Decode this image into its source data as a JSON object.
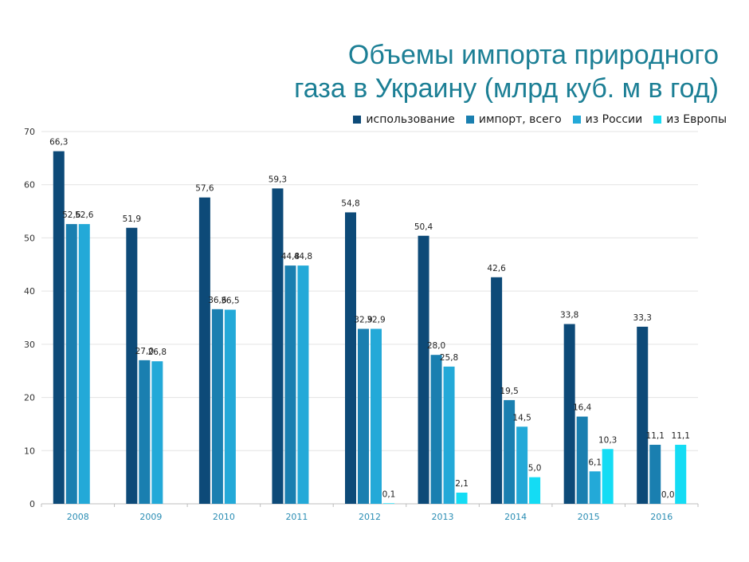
{
  "chart_data": {
    "type": "bar",
    "title_lines": [
      "Объемы импорта природного",
      "газа в Украину (млрд куб. м в год)"
    ],
    "categories": [
      "2008",
      "2009",
      "2010",
      "2011",
      "2012",
      "2013",
      "2014",
      "2015",
      "2016"
    ],
    "series": [
      {
        "name": "использование",
        "color": "#0d4a78",
        "values": [
          66.3,
          51.9,
          57.6,
          59.3,
          54.8,
          50.4,
          42.6,
          33.8,
          33.3
        ],
        "labels": [
          "66,3",
          "51,9",
          "57,6",
          "59,3",
          "54,8",
          "50,4",
          "42,6",
          "33,8",
          "33,3"
        ]
      },
      {
        "name": "импорт, всего",
        "color": "#1a7fb0",
        "values": [
          52.6,
          27.0,
          36.6,
          44.8,
          32.9,
          28.0,
          19.5,
          16.4,
          11.1
        ],
        "labels": [
          "52,6",
          "27,0",
          "36,6",
          "44,8",
          "32,9",
          "28,0",
          "19,5",
          "16,4",
          "11,1"
        ]
      },
      {
        "name": "из России",
        "color": "#23a9d8",
        "values": [
          52.6,
          26.8,
          36.5,
          44.8,
          32.9,
          25.8,
          14.5,
          6.1,
          0.0
        ],
        "labels": [
          "52,6",
          "26,8",
          "36,5",
          "44,8",
          "32,9",
          "25,8",
          "14,5",
          "6,1",
          "0,0"
        ]
      },
      {
        "name": "из Европы",
        "color": "#14dcf4",
        "values": [
          null,
          null,
          null,
          null,
          0.1,
          2.1,
          5.0,
          10.3,
          11.1
        ],
        "labels": [
          "",
          "",
          "",
          "",
          "0,1",
          "2,1",
          "5,0",
          "10,3",
          "11,1"
        ]
      }
    ],
    "ylim": [
      0,
      70
    ],
    "yticks": [
      0,
      10,
      20,
      30,
      40,
      50,
      60,
      70
    ],
    "grid": true,
    "legend_position": "top-right",
    "xlabel": "",
    "ylabel": ""
  }
}
